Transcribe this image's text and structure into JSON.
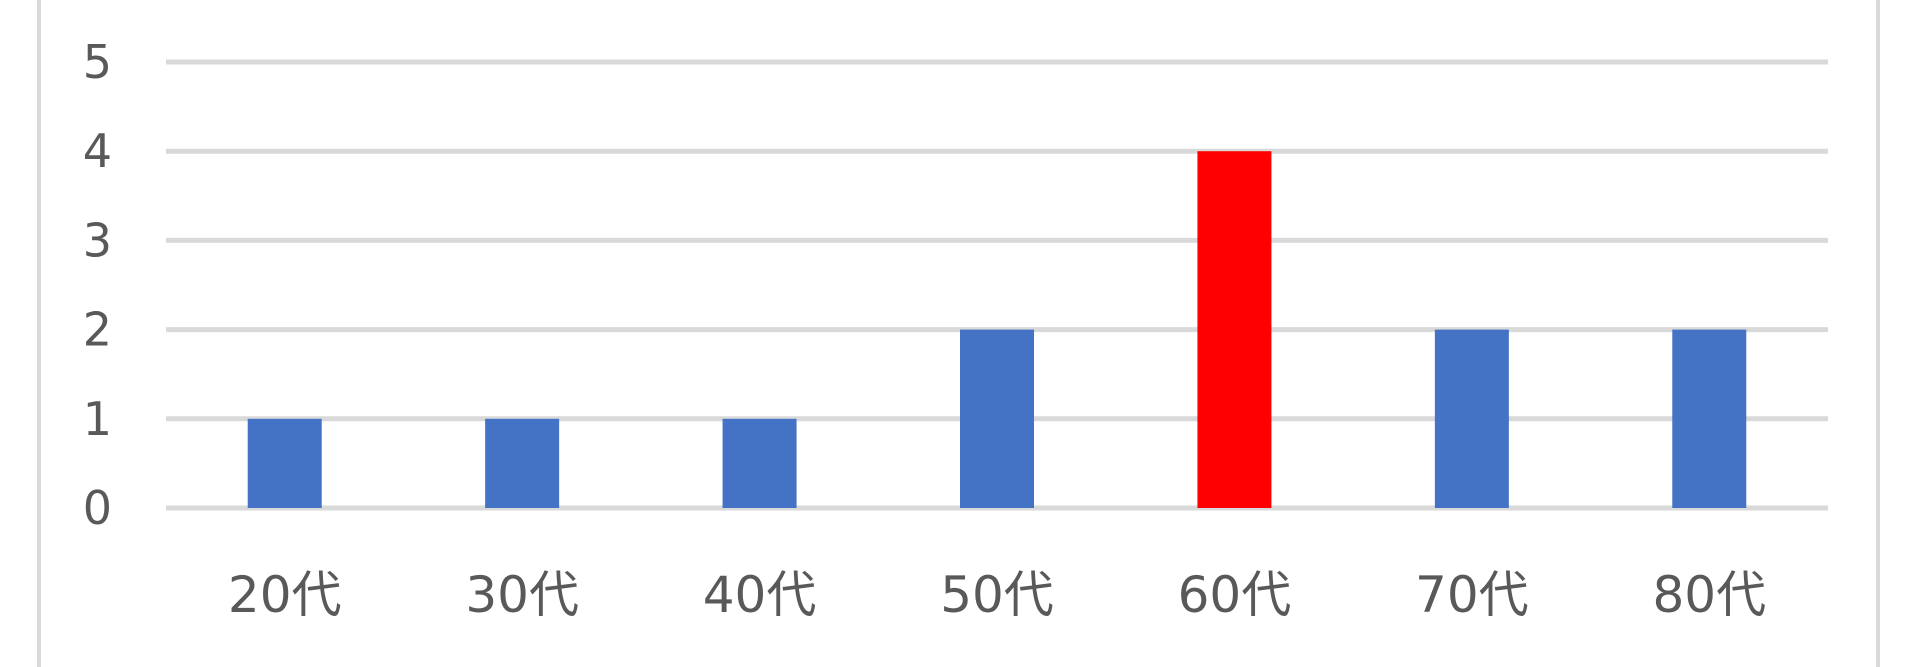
{
  "chart_data": {
    "type": "bar",
    "categories": [
      "20代",
      "30代",
      "40代",
      "50代",
      "60代",
      "70代",
      "80代"
    ],
    "values": [
      1,
      1,
      1,
      2,
      4,
      2,
      2
    ],
    "bar_colors": [
      "#4472c4",
      "#4472c4",
      "#4472c4",
      "#4472c4",
      "#ff0000",
      "#4472c4",
      "#4472c4"
    ],
    "highlight_category": "60代",
    "yticks": [
      "0",
      "1",
      "2",
      "3",
      "4",
      "5"
    ],
    "ylim": [
      0,
      5
    ],
    "grid": true,
    "legend": "none",
    "colors": {
      "default_bar": "#4472c4",
      "highlight_bar": "#ff0000",
      "grid": "#d9d9d9",
      "tick_text": "#595959"
    }
  }
}
